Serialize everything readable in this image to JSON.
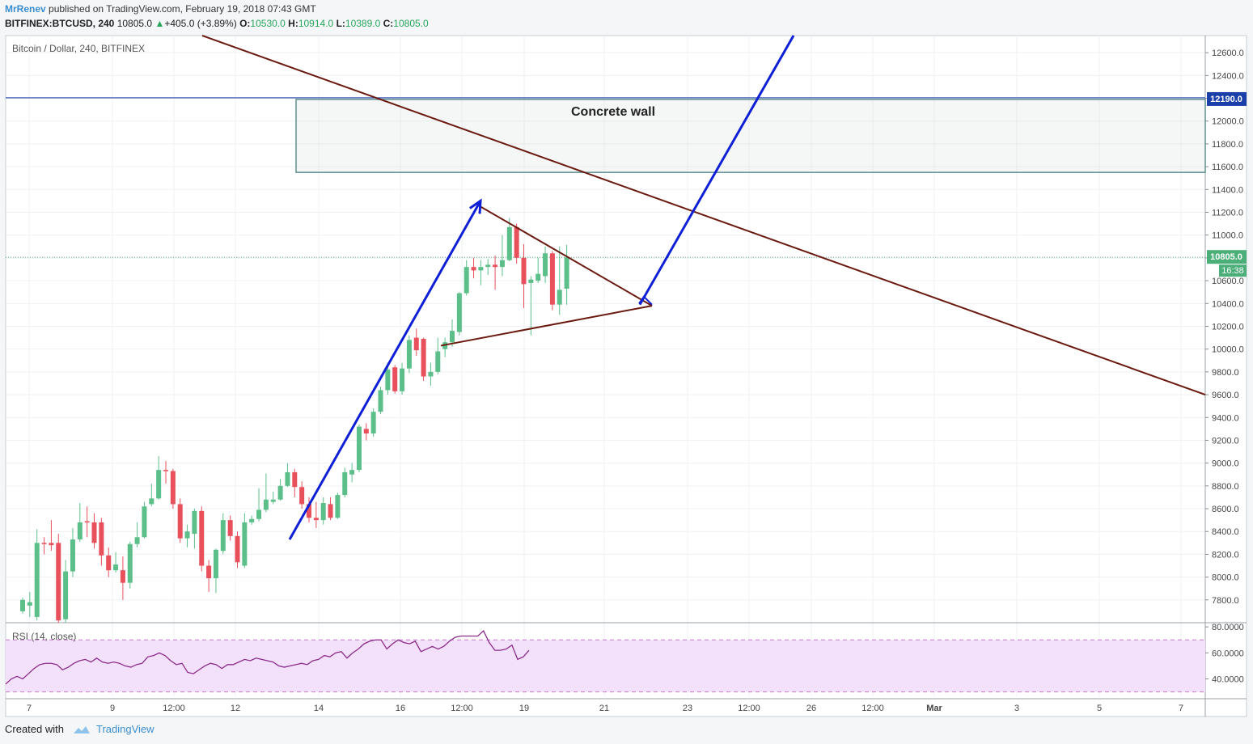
{
  "header": {
    "author": "MrRenev",
    "published_text": "published on TradingView.com, February 19, 2018 07:43 GMT",
    "symbol": "BITFINEX:BTCUSD, 240",
    "last": "10805.0",
    "change": "+405.0 (+3.89%)",
    "open_label": "O:",
    "open": "10530.0",
    "high_label": "H:",
    "high": "10914.0",
    "low_label": "L:",
    "low": "10389.0",
    "close_label": "C:",
    "close": "10805.0"
  },
  "footer": {
    "created_with": "Created with",
    "brand": "TradingView"
  },
  "colors": {
    "up": "#5cbf8a",
    "down": "#e8505b",
    "trend": "#6b1a10",
    "arrow": "#0f1fd6",
    "accent": "#1b3fa8",
    "rsi": "#8b2b8b"
  },
  "chart_data": [
    {
      "type": "candlestick",
      "title": "Bitcoin / Dollar, 240, BITFINEX",
      "ylim": [
        7600,
        12750
      ],
      "y_ticks": [
        "7800.0",
        "8000.0",
        "8200.0",
        "8400.0",
        "8600.0",
        "8800.0",
        "9000.0",
        "9200.0",
        "9400.0",
        "9600.0",
        "9800.0",
        "10000.0",
        "10200.0",
        "10400.0",
        "10600.0",
        "10800.0",
        "11000.0",
        "11200.0",
        "11400.0",
        "11600.0",
        "11800.0",
        "12000.0",
        "12200.0",
        "12400.0",
        "12600.0"
      ],
      "x_ticks": [
        "7",
        "9",
        "12:00",
        "12",
        "14",
        "16",
        "12:00",
        "19",
        "21",
        "23",
        "12:00",
        "26",
        "12:00",
        "Mar",
        "3",
        "5",
        "7"
      ],
      "price_labels": {
        "resistance": "12190.0",
        "last": "10805.0",
        "countdown": "16:38"
      },
      "annotation": "Concrete wall",
      "candles": [
        [
          7700,
          7800,
          7680,
          7820
        ],
        [
          7750,
          7780,
          7650,
          7870
        ],
        [
          7650,
          8300,
          7620,
          8420
        ],
        [
          8300,
          8290,
          8200,
          8350
        ],
        [
          8300,
          8280,
          8230,
          8500
        ],
        [
          8300,
          7620,
          7600,
          8380
        ],
        [
          7630,
          8050,
          7600,
          8150
        ],
        [
          8050,
          8330,
          8000,
          8430
        ],
        [
          8330,
          8480,
          8310,
          8650
        ],
        [
          8490,
          8480,
          8350,
          8620
        ],
        [
          8480,
          8300,
          8250,
          8560
        ],
        [
          8480,
          8190,
          8100,
          8520
        ],
        [
          8190,
          8060,
          8000,
          8260
        ],
        [
          8060,
          8110,
          8040,
          8220
        ],
        [
          8060,
          7950,
          7800,
          8180
        ],
        [
          7950,
          8290,
          7900,
          8310
        ],
        [
          8290,
          8350,
          8260,
          8480
        ],
        [
          8350,
          8620,
          8340,
          8660
        ],
        [
          8640,
          8690,
          8620,
          8820
        ],
        [
          8690,
          8940,
          8680,
          9060
        ],
        [
          8940,
          8930,
          8820,
          9020
        ],
        [
          8930,
          8640,
          8600,
          8950
        ],
        [
          8640,
          8340,
          8300,
          8690
        ],
        [
          8340,
          8400,
          8260,
          8460
        ],
        [
          8380,
          8580,
          8250,
          8600
        ],
        [
          8580,
          8100,
          8050,
          8620
        ],
        [
          8100,
          7990,
          7870,
          8150
        ],
        [
          7990,
          8240,
          7860,
          8250
        ],
        [
          8230,
          8500,
          8200,
          8560
        ],
        [
          8500,
          8360,
          8320,
          8540
        ],
        [
          8360,
          8130,
          8080,
          8400
        ],
        [
          8100,
          8480,
          8080,
          8560
        ],
        [
          8480,
          8510,
          8460,
          8540
        ],
        [
          8510,
          8590,
          8490,
          8780
        ],
        [
          8590,
          8680,
          8570,
          8910
        ],
        [
          8660,
          8680,
          8640,
          8750
        ],
        [
          8680,
          8800,
          8670,
          8860
        ],
        [
          8800,
          8920,
          8790,
          9000
        ],
        [
          8920,
          8790,
          8700,
          8950
        ],
        [
          8790,
          8640,
          8600,
          8840
        ],
        [
          8640,
          8520,
          8480,
          8700
        ],
        [
          8520,
          8500,
          8430,
          8660
        ],
        [
          8500,
          8650,
          8460,
          8700
        ],
        [
          8640,
          8520,
          8500,
          8700
        ],
        [
          8520,
          8720,
          8510,
          8740
        ],
        [
          8720,
          8920,
          8700,
          8960
        ],
        [
          8900,
          8940,
          8830,
          9000
        ],
        [
          8940,
          9320,
          8920,
          9340
        ],
        [
          9300,
          9260,
          9200,
          9350
        ],
        [
          9260,
          9450,
          9230,
          9480
        ],
        [
          9450,
          9640,
          9430,
          9670
        ],
        [
          9640,
          9820,
          9600,
          9880
        ],
        [
          9840,
          9630,
          9610,
          9860
        ],
        [
          9630,
          9830,
          9600,
          9880
        ],
        [
          9830,
          10080,
          9790,
          10120
        ],
        [
          10100,
          9990,
          9940,
          10180
        ],
        [
          10090,
          9760,
          9720,
          10100
        ],
        [
          9760,
          9800,
          9680,
          9880
        ],
        [
          9800,
          9980,
          9780,
          10100
        ],
        [
          10000,
          10060,
          9930,
          10100
        ],
        [
          10060,
          10160,
          10020,
          10260
        ],
        [
          10150,
          10490,
          10120,
          10500
        ],
        [
          10490,
          10720,
          10470,
          10780
        ],
        [
          10720,
          10690,
          10620,
          10800
        ],
        [
          10690,
          10720,
          10560,
          10780
        ],
        [
          10720,
          10740,
          10650,
          10790
        ],
        [
          10740,
          10720,
          10520,
          10820
        ],
        [
          10720,
          10780,
          10640,
          11000
        ],
        [
          10780,
          11070,
          10770,
          11150
        ],
        [
          11070,
          10800,
          10750,
          11100
        ],
        [
          10800,
          10570,
          10360,
          10920
        ],
        [
          10580,
          10610,
          10120,
          10640
        ],
        [
          10600,
          10660,
          10580,
          10800
        ],
        [
          10640,
          10840,
          10580,
          10900
        ],
        [
          10840,
          10390,
          10340,
          10860
        ],
        [
          10390,
          10520,
          10300,
          10900
        ],
        [
          10530,
          10805,
          10389,
          10914
        ]
      ],
      "trendlines": [
        {
          "from": [
            "Feb 6",
            12750
          ],
          "to": [
            "Mar 8",
            9600
          ]
        },
        {
          "from": [
            "Feb 18 peak",
            11250
          ],
          "to": [
            "Feb 21 18:00",
            10380
          ]
        },
        {
          "from": [
            "Feb 17 12:00",
            10030
          ],
          "to": [
            "Feb 21 18:00",
            10380
          ]
        },
        {
          "from": [
            "Feb 13 12:00",
            8330
          ],
          "to": [
            "Feb 18",
            11300
          ],
          "arrow": true
        },
        {
          "from": [
            "Feb 21 18:00",
            10390
          ],
          "to": [
            "Feb 25",
            12750
          ]
        }
      ],
      "zone": {
        "low": 11550,
        "high": 12190
      }
    },
    {
      "type": "line",
      "title": "RSI (14, close)",
      "ylim": [
        26,
        82
      ],
      "y_ticks": [
        "80.0000",
        "60.0000",
        "40.0000"
      ],
      "bands": [
        30,
        70
      ],
      "values": [
        36,
        40,
        42,
        40,
        44,
        48,
        51,
        52,
        52,
        51,
        47,
        49,
        52,
        54,
        55,
        53,
        56,
        53,
        52,
        53,
        52,
        50,
        49,
        51,
        52,
        57,
        58,
        60,
        58,
        54,
        51,
        52,
        45,
        44,
        47,
        50,
        52,
        51,
        48,
        51,
        51,
        53,
        55,
        54,
        56,
        55,
        54,
        53,
        50,
        49,
        50,
        51,
        52,
        51,
        54,
        55,
        58,
        57,
        60,
        61,
        56,
        60,
        63,
        67,
        69,
        70,
        70,
        63,
        67,
        70,
        68,
        67,
        69,
        61,
        63,
        65,
        63,
        65,
        69,
        72,
        73,
        73,
        73,
        73,
        77,
        68,
        62,
        62,
        63,
        66,
        55,
        57,
        62
      ]
    }
  ]
}
